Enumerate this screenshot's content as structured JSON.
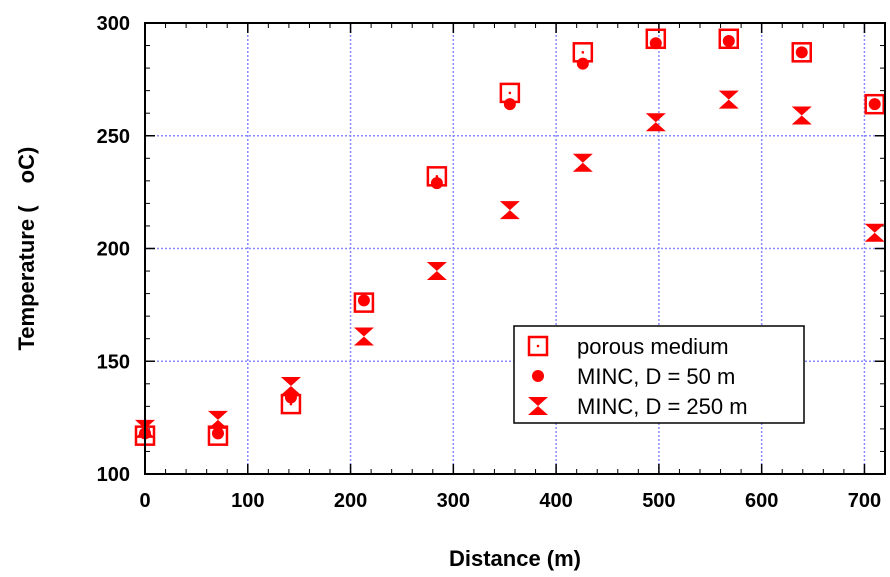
{
  "chart_data": {
    "type": "scatter",
    "title": "",
    "xlabel": "Distance (m)",
    "ylabel_main": "Temperature (",
    "ylabel_unit": "oC)",
    "xlim": [
      0,
      720
    ],
    "ylim": [
      100,
      300
    ],
    "xticks": [
      "0",
      "100",
      "200",
      "300",
      "400",
      "500",
      "600",
      "700"
    ],
    "yticks": [
      "100",
      "150",
      "200",
      "250",
      "300"
    ],
    "grid": true,
    "legend_position": "bottom-right",
    "series": [
      {
        "name": "porous medium",
        "marker": "open-square",
        "color": "#ff0000",
        "x": [
          0,
          71,
          142,
          213,
          284,
          355,
          426,
          497,
          568,
          639,
          710
        ],
        "y": [
          117,
          117,
          131,
          176,
          232,
          269,
          287,
          293,
          293,
          287,
          264
        ]
      },
      {
        "name": "MINC, D = 50 m",
        "marker": "filled-circle",
        "color": "#ff0000",
        "x": [
          0,
          71,
          142,
          213,
          284,
          355,
          426,
          497,
          568,
          639,
          710
        ],
        "y": [
          118,
          118,
          134,
          177,
          229,
          264,
          282,
          291,
          292,
          287,
          264
        ]
      },
      {
        "name": "MINC, D = 250 m",
        "marker": "hourglass",
        "color": "#ff0000",
        "x": [
          0,
          71,
          142,
          213,
          284,
          355,
          426,
          497,
          568,
          639,
          710
        ],
        "y": [
          120,
          124,
          139,
          161,
          190,
          217,
          238,
          256,
          266,
          259,
          207
        ]
      }
    ]
  }
}
